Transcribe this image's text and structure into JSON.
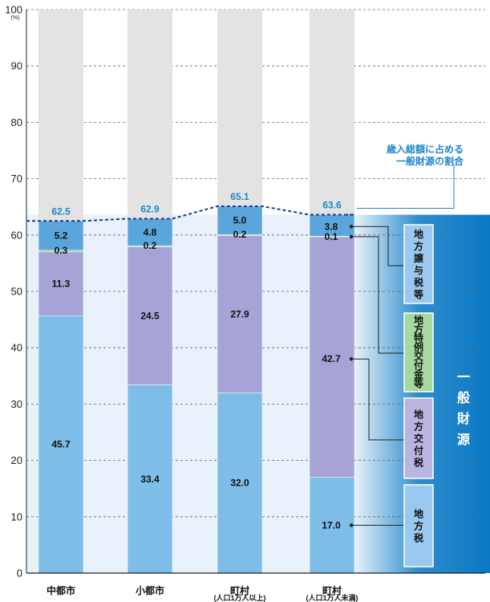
{
  "chart_data": {
    "type": "bar",
    "stacked": true,
    "unit": "(%)",
    "ylim": [
      0,
      100
    ],
    "yticks": [
      0,
      10,
      20,
      30,
      40,
      50,
      60,
      70,
      80,
      90,
      100
    ],
    "grid": true,
    "categories": [
      {
        "name": "中都市",
        "sub": ""
      },
      {
        "name": "小都市",
        "sub": ""
      },
      {
        "name": "町村",
        "sub": "(人口1万人以上)"
      },
      {
        "name": "町村",
        "sub": "(人口1万人未満)"
      }
    ],
    "series": [
      {
        "name": "地方税",
        "color": "#7dbde8",
        "values": [
          45.7,
          33.4,
          32.0,
          17.0
        ]
      },
      {
        "name": "地方交付税",
        "color": "#a6a3d6",
        "values": [
          11.3,
          24.5,
          27.9,
          42.7
        ]
      },
      {
        "name": "地方特例交付金等",
        "color": "#9fd39a",
        "values": [
          0.3,
          0.2,
          0.2,
          0.1
        ]
      },
      {
        "name": "地方譲与税等",
        "color": "#5aa6dc",
        "values": [
          5.2,
          4.8,
          5.0,
          3.8
        ]
      }
    ],
    "totals": [
      62.5,
      62.9,
      65.1,
      63.6
    ],
    "value_labels": [
      [
        "45.7",
        "11.3",
        "0.3",
        "5.2"
      ],
      [
        "33.4",
        "24.5",
        "0.2",
        "4.8"
      ],
      [
        "32.0",
        "27.9",
        "0.2",
        "5.0"
      ],
      [
        "17.0",
        "42.7",
        "0.1",
        "3.8"
      ]
    ],
    "total_labels": [
      "62.5",
      "62.9",
      "65.1",
      "63.6"
    ],
    "annotation_lines": [
      "歳入総額に占める",
      "一般財源の割合"
    ],
    "general_revenue_label": "一般財源",
    "legend_labels": [
      "地方譲与税等",
      "地方特例交付金等",
      "地方交付税",
      "地方税"
    ],
    "colors": {
      "background_bar": "#e3e3e3",
      "accent": "#1f86c8",
      "band": "#0a78c4",
      "plot_tint": "#e9f1fa",
      "dash": "#1a3e8a"
    }
  }
}
